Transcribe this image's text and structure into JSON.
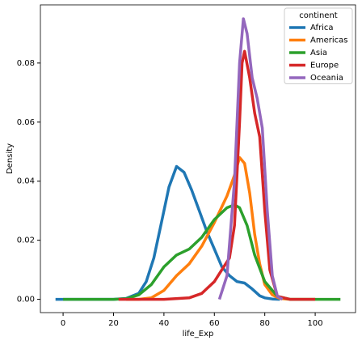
{
  "chart_data": {
    "type": "line",
    "x_label": "life_Exp",
    "y_label": "Density",
    "xlim": [
      -9,
      116
    ],
    "ylim": [
      -0.0045,
      0.0997
    ],
    "xticks": [
      0,
      20,
      40,
      60,
      80,
      100
    ],
    "yticks": [
      {
        "value": 0,
        "label": "0.00"
      },
      {
        "value": 0.02,
        "label": "0.02"
      },
      {
        "value": 0.04,
        "label": "0.04"
      },
      {
        "value": 0.06,
        "label": "0.06"
      },
      {
        "value": 0.08,
        "label": "0.08"
      }
    ],
    "legend_title": "continent",
    "legend_position": "upper right",
    "series": [
      {
        "name": "Africa",
        "color": "#1f77b4",
        "x": [
          -3,
          10,
          20,
          25,
          30,
          33,
          36,
          39,
          42,
          45,
          48,
          51,
          54,
          57,
          60,
          63,
          66,
          69,
          72,
          75,
          78,
          80,
          83,
          86
        ],
        "values": [
          0,
          0,
          0,
          0.0003,
          0.002,
          0.006,
          0.014,
          0.026,
          0.038,
          0.045,
          0.043,
          0.037,
          0.03,
          0.023,
          0.017,
          0.011,
          0.008,
          0.006,
          0.0055,
          0.0035,
          0.0012,
          0.0005,
          0.0001,
          0
        ]
      },
      {
        "name": "Americas",
        "color": "#ff7f0e",
        "x": [
          25,
          30,
          35,
          40,
          45,
          50,
          55,
          60,
          65,
          68,
          70,
          72,
          74,
          76,
          78,
          80,
          83,
          86,
          90,
          100
        ],
        "values": [
          0,
          0,
          0.0005,
          0.003,
          0.008,
          0.012,
          0.018,
          0.026,
          0.035,
          0.042,
          0.048,
          0.046,
          0.036,
          0.022,
          0.012,
          0.005,
          0.0015,
          0.0003,
          0,
          0
        ]
      },
      {
        "name": "Asia",
        "color": "#2ca02c",
        "x": [
          0,
          20,
          25,
          30,
          35,
          40,
          45,
          50,
          55,
          60,
          65,
          68,
          70,
          73,
          76,
          80,
          85,
          90,
          110
        ],
        "values": [
          0,
          0,
          0.0002,
          0.0015,
          0.005,
          0.011,
          0.015,
          0.017,
          0.021,
          0.027,
          0.031,
          0.032,
          0.031,
          0.025,
          0.015,
          0.006,
          0.001,
          0,
          0
        ]
      },
      {
        "name": "Europe",
        "color": "#d62728",
        "x": [
          22,
          40,
          50,
          55,
          60,
          63,
          66,
          68,
          70,
          71,
          72,
          74,
          76,
          78,
          80,
          82,
          85,
          90,
          100
        ],
        "values": [
          0,
          0,
          0.0005,
          0.002,
          0.006,
          0.01,
          0.014,
          0.025,
          0.06,
          0.08,
          0.084,
          0.075,
          0.063,
          0.055,
          0.03,
          0.01,
          0.001,
          0,
          0
        ]
      },
      {
        "name": "Oceania",
        "color": "#9467bd",
        "x": [
          62,
          65,
          68,
          70,
          71.5,
          73,
          75,
          77,
          79,
          81,
          83,
          85,
          87
        ],
        "values": [
          0,
          0.008,
          0.04,
          0.08,
          0.095,
          0.09,
          0.075,
          0.068,
          0.058,
          0.03,
          0.008,
          0.001,
          0
        ]
      }
    ]
  }
}
